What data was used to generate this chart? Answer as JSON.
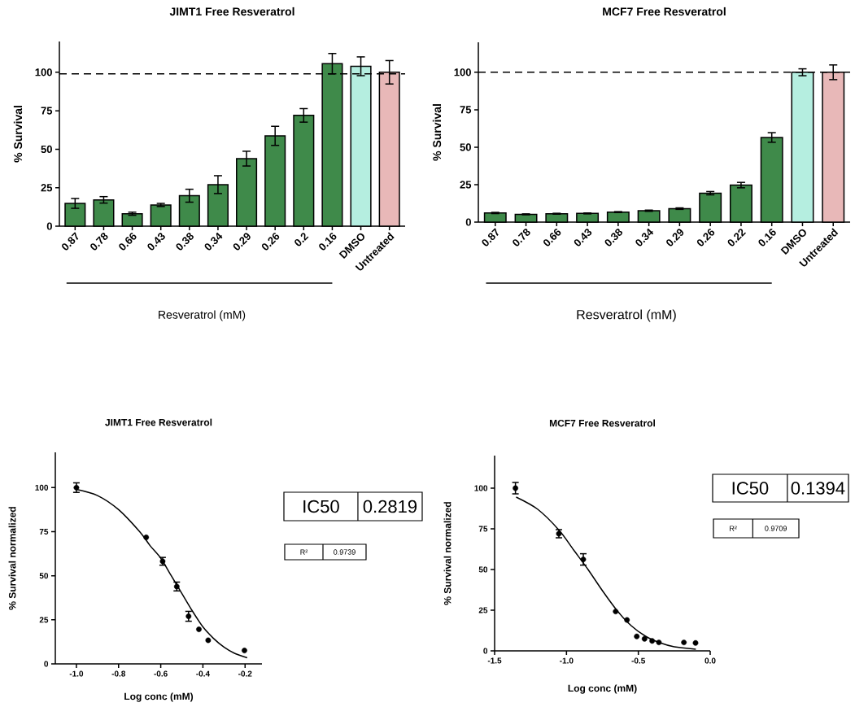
{
  "chart_data": [
    {
      "type": "bar",
      "title": "JIMT1 Free Resveratrol",
      "ylabel": "% Survival",
      "xlabel": "Resveratrol (mM)",
      "categories": [
        "0.87",
        "0.78",
        "0.66",
        "0.43",
        "0.38",
        "0.34",
        "0.29",
        "0.26",
        "0.2",
        "0.16",
        "DMSO",
        "Untreated"
      ],
      "values": [
        14.8,
        17.1,
        8.1,
        13.8,
        19.8,
        27,
        43.9,
        58.7,
        72,
        105.6,
        103.9,
        100
      ],
      "errors": [
        3.2,
        2.1,
        1,
        1,
        4.2,
        5.8,
        4.8,
        6.2,
        4.4,
        6.6,
        6.1,
        7.6
      ],
      "colors": [
        "#3f8a4a",
        "#3f8a4a",
        "#3f8a4a",
        "#3f8a4a",
        "#3f8a4a",
        "#3f8a4a",
        "#3f8a4a",
        "#3f8a4a",
        "#3f8a4a",
        "#3f8a4a",
        "#b5eee0",
        "#e8b8b8"
      ],
      "ylim": [
        0,
        120
      ],
      "yticks": [
        0,
        25,
        50,
        75,
        100
      ],
      "ref_lines": [
        {
          "axis": "y",
          "value": 99,
          "line_style": "dashed",
          "color": "#000000"
        }
      ]
    },
    {
      "type": "bar",
      "title": "MCF7 Free Resveratrol",
      "ylabel": "% Survival",
      "xlabel": "Resveratrol (mM)",
      "categories": [
        "0.87",
        "0.78",
        "0.66",
        "0.43",
        "0.38",
        "0.34",
        "0.29",
        "0.26",
        "0.22",
        "0.16",
        "DMSO",
        "Untreated"
      ],
      "values": [
        6.1,
        5.2,
        5.6,
        5.8,
        6.7,
        7.6,
        9.0,
        19.3,
        24.7,
        56.5,
        100,
        100
      ],
      "errors": [
        0.4,
        0.3,
        0.3,
        0.3,
        0.3,
        0.4,
        0.5,
        1.1,
        1.8,
        3.2,
        2.3,
        4.9
      ],
      "colors": [
        "#3f8a4a",
        "#3f8a4a",
        "#3f8a4a",
        "#3f8a4a",
        "#3f8a4a",
        "#3f8a4a",
        "#3f8a4a",
        "#3f8a4a",
        "#3f8a4a",
        "#3f8a4a",
        "#b5eee0",
        "#e8b8b8"
      ],
      "ylim": [
        0,
        120
      ],
      "yticks": [
        0,
        25,
        50,
        75,
        100
      ],
      "ref_lines": [
        {
          "axis": "y",
          "value": 100,
          "line_style": "dashed",
          "color": "#000000"
        }
      ]
    },
    {
      "type": "scatter",
      "title": "JIMT1 Free Resveratrol",
      "ylabel": "% Survival normalized",
      "xlabel": "Log conc (mM)",
      "xlim": [
        -1.1,
        -0.12
      ],
      "xticks": [
        {
          "value": -1.0,
          "label": "-1.0"
        },
        {
          "value": -0.8,
          "label": "-0.8"
        },
        {
          "value": -0.6,
          "label": "-0.6"
        },
        {
          "value": -0.4,
          "label": "-0.4"
        },
        {
          "value": -0.2,
          "label": "-0.2"
        }
      ],
      "ylim": [
        0,
        120
      ],
      "yticks": [
        0,
        25,
        50,
        75,
        100
      ],
      "series": [
        {
          "color": "#000000",
          "marker": "circle",
          "x": [
            -1.0,
            -0.669,
            -0.591,
            -0.524,
            -0.468,
            -0.419,
            -0.375,
            -0.203
          ],
          "values": [
            100,
            71.8,
            58.2,
            43.9,
            27,
            19.6,
            13.4,
            7.6
          ],
          "errors": [
            2.7,
            null,
            2.2,
            2.5,
            2.8,
            null,
            null,
            null
          ]
        },
        {
          "type": "line",
          "color": "#000000",
          "marker": "none",
          "x": [
            -1.0,
            -0.9,
            -0.8,
            -0.7,
            -0.65,
            -0.6,
            -0.55,
            -0.5,
            -0.45,
            -0.4,
            -0.35,
            -0.3,
            -0.25,
            -0.19
          ],
          "values": [
            99,
            95.5,
            87.5,
            75,
            67,
            60,
            50,
            40,
            30,
            21,
            14.5,
            9.5,
            6,
            3.5
          ]
        }
      ],
      "annotations": [
        "IC50",
        "0.2819",
        "R²",
        "0.9739"
      ]
    },
    {
      "type": "scatter",
      "title": "MCF7 Free Resveratrol",
      "ylabel": "% Survival normalized",
      "xlabel": "Log conc (mM)",
      "xlim": [
        -1.5,
        0
      ],
      "xticks": [
        -1.5,
        {
          "value": -1.0,
          "label": "-1.0"
        },
        -0.5,
        {
          "value": 0,
          "label": "0.0"
        }
      ],
      "ylim": [
        0,
        120
      ],
      "yticks": [
        0,
        25,
        50,
        75,
        100
      ],
      "series": [
        {
          "color": "#000000",
          "marker": "circle",
          "x": [
            -1.355,
            -1.053,
            -0.883,
            -0.658,
            -0.579,
            -0.511,
            -0.457,
            -0.404,
            -0.357,
            -0.183,
            -0.102
          ],
          "values": [
            100,
            72,
            56.2,
            24.2,
            19,
            8.9,
            7.4,
            6.1,
            5.2,
            5.2,
            4.9
          ],
          "errors": [
            3.5,
            2.5,
            3.5,
            null,
            null,
            null,
            null,
            null,
            null,
            null,
            null
          ]
        },
        {
          "type": "line",
          "color": "#000000",
          "marker": "none",
          "x": [
            -1.35,
            -1.2,
            -1.05,
            -0.95,
            -0.85,
            -0.75,
            -0.65,
            -0.55,
            -0.45,
            -0.35,
            -0.25,
            -0.1
          ],
          "values": [
            94.5,
            87,
            74,
            62,
            50,
            37,
            25,
            15.5,
            9,
            5,
            2.5,
            1
          ]
        }
      ],
      "annotations": [
        "IC50",
        "0.1394",
        "R²",
        "0.9709"
      ]
    }
  ]
}
